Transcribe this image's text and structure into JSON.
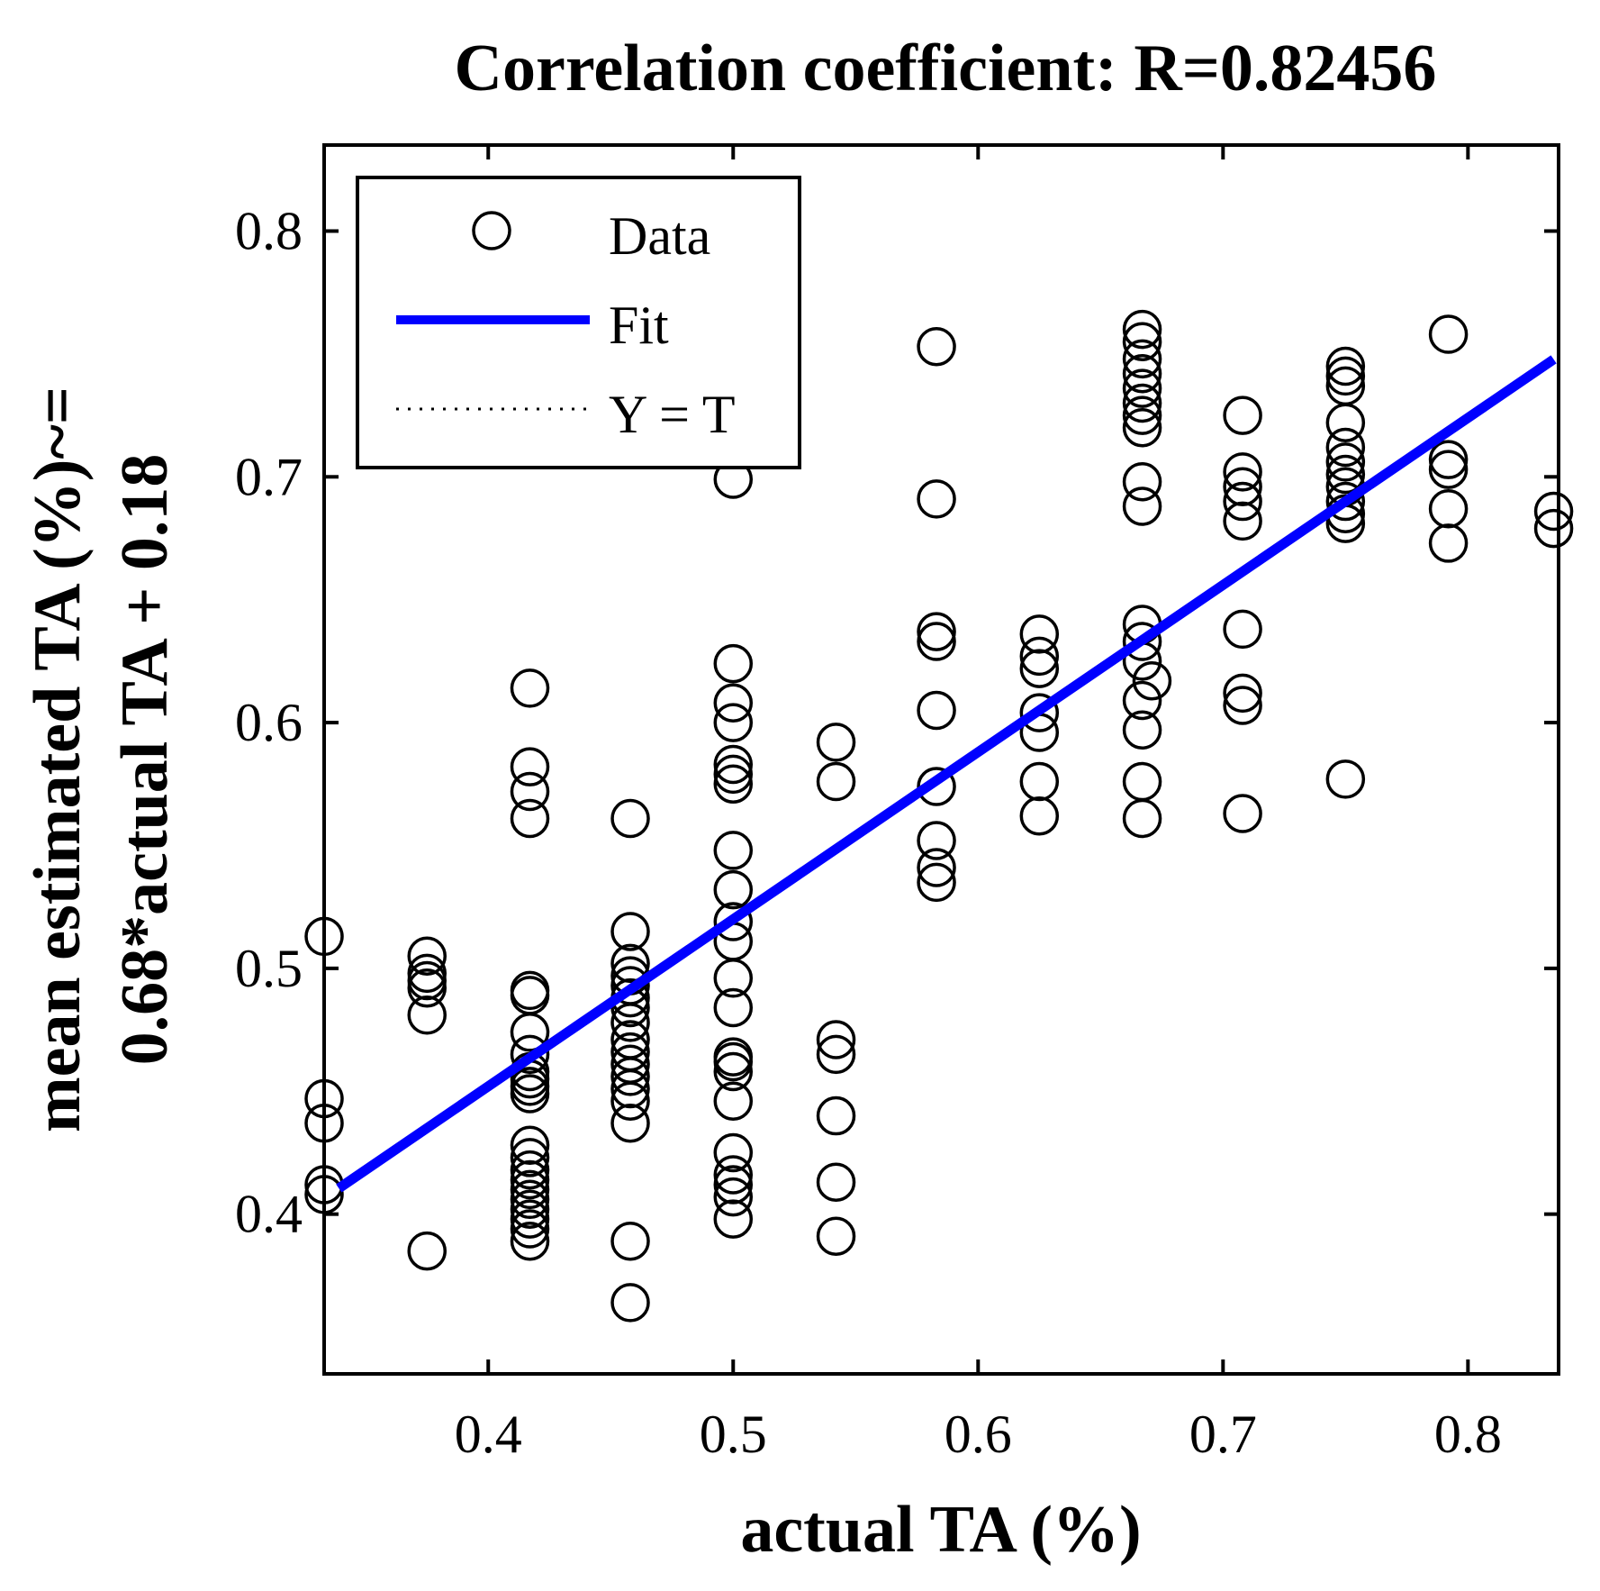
{
  "chart_data": {
    "type": "scatter",
    "title": "Correlation coefficient: R=0.82456",
    "xlabel": "actual TA (%)",
    "ylabel_line1": "mean estimated TA (%)~=",
    "ylabel_line2": "0.68*actual TA + 0.18",
    "xlim": [
      0.333,
      0.837
    ],
    "ylim": [
      0.335,
      0.835
    ],
    "xticks": [
      0.4,
      0.5,
      0.6,
      0.7,
      0.8
    ],
    "yticks": [
      0.4,
      0.5,
      0.6,
      0.7,
      0.8
    ],
    "xtick_labels": [
      "0.4",
      "0.5",
      "0.6",
      "0.7",
      "0.8"
    ],
    "ytick_labels": [
      "0.4",
      "0.5",
      "0.6",
      "0.7",
      "0.8"
    ],
    "grid": false,
    "legend": {
      "placement": "top-left",
      "entries": [
        {
          "label": "Data",
          "marker": "open-circle"
        },
        {
          "label": "Fit",
          "style": "solid",
          "color": "#0000ff"
        },
        {
          "label": "Y = T",
          "style": "dotted",
          "color": "#000000"
        }
      ]
    },
    "fit": {
      "slope": 0.68,
      "intercept": 0.18,
      "color": "#0000ff"
    },
    "series": [
      {
        "name": "Data",
        "points": [
          [
            0.333,
            0.513
          ],
          [
            0.333,
            0.447
          ],
          [
            0.333,
            0.437
          ],
          [
            0.333,
            0.412
          ],
          [
            0.333,
            0.408
          ],
          [
            0.375,
            0.505
          ],
          [
            0.375,
            0.498
          ],
          [
            0.375,
            0.495
          ],
          [
            0.375,
            0.492
          ],
          [
            0.375,
            0.481
          ],
          [
            0.375,
            0.385
          ],
          [
            0.417,
            0.614
          ],
          [
            0.417,
            0.582
          ],
          [
            0.417,
            0.572
          ],
          [
            0.417,
            0.561
          ],
          [
            0.417,
            0.491
          ],
          [
            0.417,
            0.489
          ],
          [
            0.417,
            0.474
          ],
          [
            0.417,
            0.465
          ],
          [
            0.417,
            0.458
          ],
          [
            0.417,
            0.455
          ],
          [
            0.417,
            0.452
          ],
          [
            0.417,
            0.449
          ],
          [
            0.417,
            0.428
          ],
          [
            0.417,
            0.423
          ],
          [
            0.417,
            0.418
          ],
          [
            0.417,
            0.414
          ],
          [
            0.417,
            0.41
          ],
          [
            0.417,
            0.406
          ],
          [
            0.417,
            0.402
          ],
          [
            0.417,
            0.398
          ],
          [
            0.417,
            0.394
          ],
          [
            0.417,
            0.389
          ],
          [
            0.458,
            0.561
          ],
          [
            0.458,
            0.515
          ],
          [
            0.458,
            0.502
          ],
          [
            0.458,
            0.497
          ],
          [
            0.458,
            0.493
          ],
          [
            0.458,
            0.488
          ],
          [
            0.458,
            0.484
          ],
          [
            0.458,
            0.478
          ],
          [
            0.458,
            0.471
          ],
          [
            0.458,
            0.466
          ],
          [
            0.458,
            0.461
          ],
          [
            0.458,
            0.456
          ],
          [
            0.458,
            0.451
          ],
          [
            0.458,
            0.446
          ],
          [
            0.458,
            0.437
          ],
          [
            0.458,
            0.389
          ],
          [
            0.458,
            0.364
          ],
          [
            0.5,
            0.699
          ],
          [
            0.5,
            0.624
          ],
          [
            0.5,
            0.608
          ],
          [
            0.5,
            0.6
          ],
          [
            0.5,
            0.583
          ],
          [
            0.5,
            0.579
          ],
          [
            0.5,
            0.575
          ],
          [
            0.5,
            0.548
          ],
          [
            0.5,
            0.532
          ],
          [
            0.5,
            0.519
          ],
          [
            0.5,
            0.511
          ],
          [
            0.5,
            0.496
          ],
          [
            0.5,
            0.484
          ],
          [
            0.5,
            0.464
          ],
          [
            0.5,
            0.462
          ],
          [
            0.5,
            0.458
          ],
          [
            0.5,
            0.446
          ],
          [
            0.5,
            0.425
          ],
          [
            0.5,
            0.416
          ],
          [
            0.5,
            0.412
          ],
          [
            0.5,
            0.407
          ],
          [
            0.5,
            0.398
          ],
          [
            0.542,
            0.592
          ],
          [
            0.542,
            0.576
          ],
          [
            0.542,
            0.471
          ],
          [
            0.542,
            0.465
          ],
          [
            0.542,
            0.44
          ],
          [
            0.542,
            0.413
          ],
          [
            0.542,
            0.391
          ],
          [
            0.583,
            0.753
          ],
          [
            0.583,
            0.691
          ],
          [
            0.583,
            0.637
          ],
          [
            0.583,
            0.633
          ],
          [
            0.583,
            0.605
          ],
          [
            0.583,
            0.574
          ],
          [
            0.583,
            0.552
          ],
          [
            0.583,
            0.541
          ],
          [
            0.583,
            0.535
          ],
          [
            0.625,
            0.636
          ],
          [
            0.625,
            0.627
          ],
          [
            0.625,
            0.622
          ],
          [
            0.625,
            0.604
          ],
          [
            0.625,
            0.596
          ],
          [
            0.625,
            0.576
          ],
          [
            0.625,
            0.562
          ],
          [
            0.667,
            0.76
          ],
          [
            0.667,
            0.755
          ],
          [
            0.667,
            0.748
          ],
          [
            0.667,
            0.742
          ],
          [
            0.667,
            0.736
          ],
          [
            0.667,
            0.73
          ],
          [
            0.667,
            0.725
          ],
          [
            0.667,
            0.72
          ],
          [
            0.667,
            0.698
          ],
          [
            0.667,
            0.688
          ],
          [
            0.667,
            0.64
          ],
          [
            0.667,
            0.633
          ],
          [
            0.667,
            0.625
          ],
          [
            0.667,
            0.609
          ],
          [
            0.667,
            0.597
          ],
          [
            0.667,
            0.576
          ],
          [
            0.667,
            0.561
          ],
          [
            0.671,
            0.617
          ],
          [
            0.708,
            0.725
          ],
          [
            0.708,
            0.702
          ],
          [
            0.708,
            0.696
          ],
          [
            0.708,
            0.69
          ],
          [
            0.708,
            0.682
          ],
          [
            0.708,
            0.638
          ],
          [
            0.708,
            0.612
          ],
          [
            0.708,
            0.607
          ],
          [
            0.708,
            0.563
          ],
          [
            0.75,
            0.745
          ],
          [
            0.75,
            0.741
          ],
          [
            0.75,
            0.737
          ],
          [
            0.75,
            0.722
          ],
          [
            0.75,
            0.712
          ],
          [
            0.75,
            0.706
          ],
          [
            0.75,
            0.701
          ],
          [
            0.75,
            0.696
          ],
          [
            0.75,
            0.69
          ],
          [
            0.75,
            0.685
          ],
          [
            0.75,
            0.681
          ],
          [
            0.75,
            0.577
          ],
          [
            0.792,
            0.758
          ],
          [
            0.792,
            0.707
          ],
          [
            0.792,
            0.703
          ],
          [
            0.792,
            0.687
          ],
          [
            0.792,
            0.673
          ],
          [
            0.835,
            0.686
          ],
          [
            0.835,
            0.679
          ]
        ]
      }
    ]
  }
}
